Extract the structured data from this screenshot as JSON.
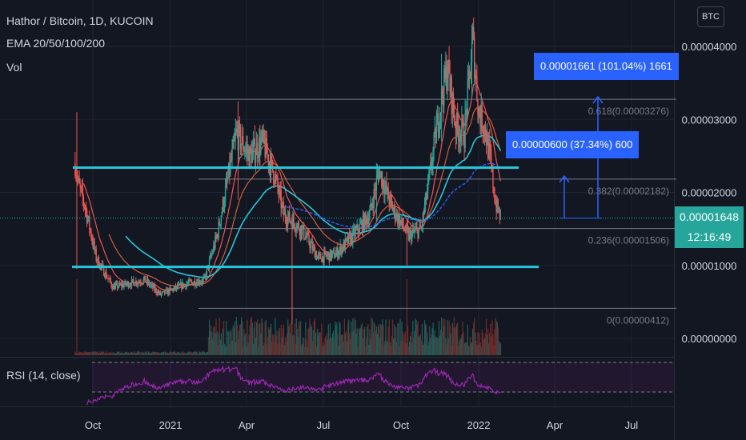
{
  "legend": {
    "symbol": "Hathor / Bitcoin, 1D, KUCOIN",
    "ema": "EMA 20/50/100/200",
    "vol": "Vol",
    "rsi": "RSI (14, close)"
  },
  "currency_button": "BTC",
  "price_axis": {
    "ticks": [
      "0.00004000",
      "0.00003000",
      "0.00002000",
      "0.00001000",
      "0.00000000"
    ],
    "last_price": "0.00001648",
    "countdown": "12:16:49"
  },
  "time_axis": {
    "ticks": [
      "Oct",
      "2021",
      "Apr",
      "Jul",
      "Oct",
      "2022",
      "Apr",
      "Jul"
    ]
  },
  "fib_labels": {
    "f618": "0.618(0.00003276)",
    "f382": "0.382(0.00002182)",
    "f236": "0.236(0.00001506)",
    "f0": "0(0.00000412)"
  },
  "measure_labels": {
    "big": "0.00001661 (101.04%) 1661",
    "small": "0.00000600 (37.34%) 600"
  },
  "colors": {
    "background": "#131722",
    "up": "#26a69a",
    "down": "#ef5350",
    "ema20": "#ef5350",
    "ema50": "#ff7043",
    "ema100": "#26c6da",
    "ema200": "#2962ff",
    "rsi": "#9c27b0",
    "measure": "#2962ff",
    "trendline": "#26c6da"
  },
  "chart_data": {
    "type": "candlestick",
    "y_unit": "BTC",
    "ylim": [
      -2.5e-06,
      4.3e-05
    ],
    "last_price": 1.648e-05,
    "fib_levels": [
      {
        "ratio": 0.618,
        "price": 3.276e-05
      },
      {
        "ratio": 0.382,
        "price": 2.182e-05
      },
      {
        "ratio": 0.236,
        "price": 1.506e-05
      },
      {
        "ratio": 0,
        "price": 4.12e-06
      }
    ],
    "support_lines": [
      2.34e-05,
      9.8e-06
    ],
    "anchors": [
      [
        "2020-09-10",
        2.4e-05
      ],
      [
        "2020-09-14",
        2.1e-05
      ],
      [
        "2020-09-22",
        1.8e-05
      ],
      [
        "2020-10-05",
        1.1e-05
      ],
      [
        "2020-10-25",
        7e-06
      ],
      [
        "2020-12-01",
        8e-06
      ],
      [
        "2020-12-20",
        6e-06
      ],
      [
        "2021-01-20",
        7.5e-06
      ],
      [
        "2021-02-10",
        8e-06
      ],
      [
        "2021-02-25",
        1.4e-05
      ],
      [
        "2021-03-20",
        2.8e-05
      ],
      [
        "2021-04-05",
        2.5e-05
      ],
      [
        "2021-04-20",
        2.7e-05
      ],
      [
        "2021-05-05",
        2.2e-05
      ],
      [
        "2021-05-15",
        1.7e-05
      ],
      [
        "2021-06-05",
        1.5e-05
      ],
      [
        "2021-06-25",
        1.1e-05
      ],
      [
        "2021-07-15",
        1.15e-05
      ],
      [
        "2021-08-05",
        1.4e-05
      ],
      [
        "2021-08-25",
        1.7e-05
      ],
      [
        "2021-09-05",
        2.3e-05
      ],
      [
        "2021-09-20",
        1.8e-05
      ],
      [
        "2021-10-10",
        1.4e-05
      ],
      [
        "2021-10-25",
        1.5e-05
      ],
      [
        "2021-11-05",
        2.3e-05
      ],
      [
        "2021-11-15",
        3.1e-05
      ],
      [
        "2021-11-25",
        3.7e-05
      ],
      [
        "2021-12-05",
        2.9e-05
      ],
      [
        "2021-12-15",
        2.8e-05
      ],
      [
        "2021-12-25",
        4.1e-05
      ],
      [
        "2022-01-01",
        3.1e-05
      ],
      [
        "2022-01-08",
        2.9e-05
      ],
      [
        "2022-01-15",
        2.4e-05
      ],
      [
        "2022-01-21",
        1.85e-05
      ],
      [
        "2022-01-27",
        1.648e-05
      ]
    ],
    "spikes": [
      [
        "2020-09-12",
        3.1e-05,
        9.5e-06
      ],
      [
        "2021-03-22",
        3.25e-05,
        1.9e-05
      ],
      [
        "2021-05-25",
        1.7e-05,
        2e-06
      ],
      [
        "2021-09-02",
        2.4e-05,
        1.6e-05
      ],
      [
        "2021-10-08",
        1.65e-05,
        1e-05
      ],
      [
        "2021-11-18",
        3.9e-05,
        2.7e-05
      ],
      [
        "2021-12-24",
        4.3e-05,
        3.3e-05
      ]
    ],
    "volume": {
      "note": "histogram below price; spikes 2021-05-25 and 2021-10-08"
    },
    "rsi": {
      "period": 14,
      "band_upper": 70,
      "band_lower": 30
    }
  }
}
